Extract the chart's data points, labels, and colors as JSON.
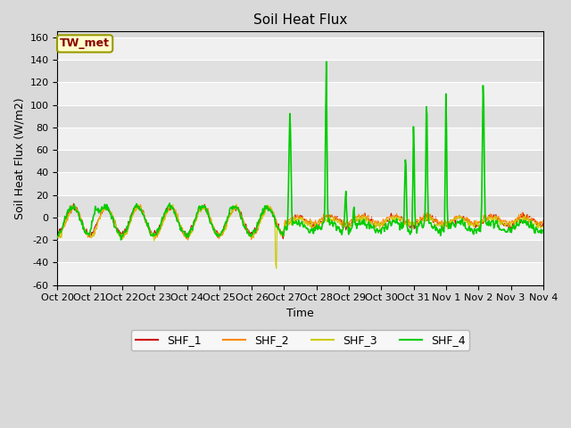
{
  "title": "Soil Heat Flux",
  "ylabel": "Soil Heat Flux (W/m2)",
  "xlabel": "Time",
  "ylim": [
    -60,
    165
  ],
  "yticks": [
    -60,
    -40,
    -20,
    0,
    20,
    40,
    60,
    80,
    100,
    120,
    140,
    160
  ],
  "x_labels": [
    "Oct 20",
    "Oct 21",
    "Oct 22",
    "Oct 23",
    "Oct 24",
    "Oct 25",
    "Oct 26",
    "Oct 27",
    "Oct 28",
    "Oct 29",
    "Oct 30",
    "Oct 31",
    "Nov 1",
    "Nov 2",
    "Nov 3",
    "Nov 4"
  ],
  "colors": {
    "SHF_1": "#cc0000",
    "SHF_2": "#ff8800",
    "SHF_3": "#cccc00",
    "SHF_4": "#00cc00"
  },
  "line_widths": {
    "SHF_1": 0.8,
    "SHF_2": 0.8,
    "SHF_3": 0.8,
    "SHF_4": 1.2
  },
  "bg_color": "#d9d9d9",
  "plot_bg": "#d9d9d9",
  "annotation_text": "TW_met",
  "annotation_bg": "#ffffcc",
  "annotation_border": "#999900",
  "grid_color": "#ffffff",
  "title_fontsize": 11,
  "axis_label_fontsize": 9,
  "tick_fontsize": 8,
  "legend_fontsize": 9,
  "figsize": [
    6.4,
    4.8
  ],
  "dpi": 100
}
